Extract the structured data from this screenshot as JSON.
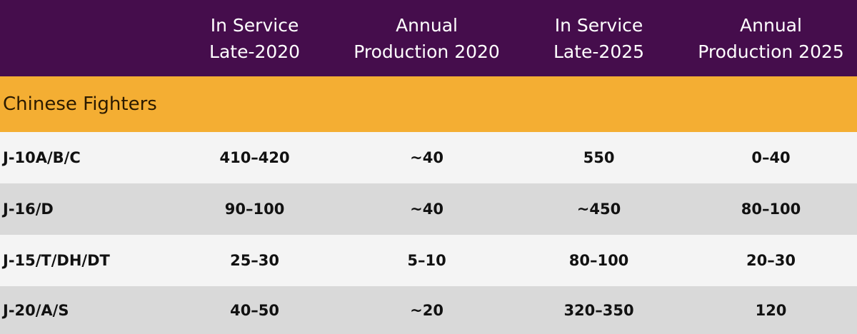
{
  "table": {
    "header": [
      [
        "In Service",
        "Late-2020"
      ],
      [
        "Annual",
        "Production 2020"
      ],
      [
        "In Service",
        "Late-2025"
      ],
      [
        "Annual",
        "Production 2025"
      ]
    ],
    "section": "Chinese Fighters",
    "rows": [
      [
        "J-10A/B/C",
        "410–420",
        "~40",
        "550",
        "0–40"
      ],
      [
        "J-16/D",
        "90–100",
        "~40",
        "~450",
        "80–100"
      ],
      [
        "J-15/T/DH/DT",
        "25–30",
        "5–10",
        "80–100",
        "20–30"
      ],
      [
        "J-20/A/S",
        "40–50",
        "~20",
        "320–350",
        "120"
      ]
    ]
  }
}
